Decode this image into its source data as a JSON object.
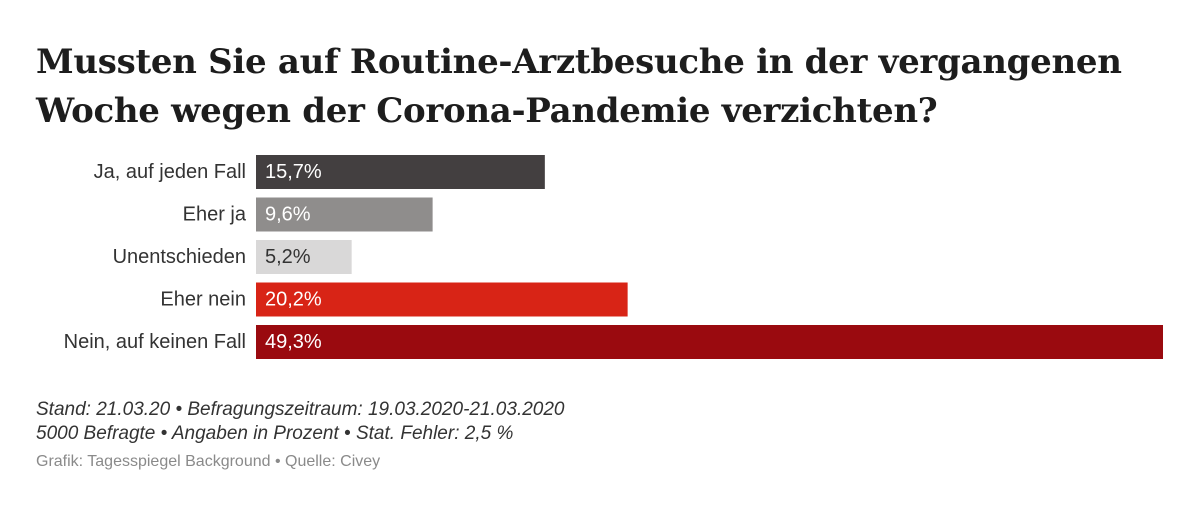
{
  "header": {
    "title_line1": "Mussten Sie auf Routine-Arztbesuche in der vergangenen",
    "title_line2": "Woche wegen der Corona-Pandemie verzichten?"
  },
  "chart_data": {
    "type": "bar",
    "orientation": "horizontal",
    "categories": [
      "Ja, auf jeden Fall",
      "Eher ja",
      "Unentschieden",
      "Eher nein",
      "Nein, auf keinen Fall"
    ],
    "values": [
      15.7,
      9.6,
      5.2,
      20.2,
      49.3
    ],
    "value_labels": [
      "15,7%",
      "9,6%",
      "5,2%",
      "20,2%",
      "49,3%"
    ],
    "colors": [
      "#433f40",
      "#8f8d8c",
      "#d9d8d8",
      "#d82416",
      "#9a0a0f"
    ],
    "label_colors": [
      "#ffffff",
      "#ffffff",
      "#333333",
      "#ffffff",
      "#ffffff"
    ],
    "xlim": [
      0,
      49.3
    ],
    "grid": false,
    "legend": "none"
  },
  "footer": {
    "note_line1": "Stand: 21.03.20 • Befragungszeitraum: 19.03.2020-21.03.2020",
    "note_line2": "5000 Befragte • Angaben in Prozent • Stat. Fehler: 2,5 %",
    "credit": "Grafik: Tagesspiegel Background • Quelle: Civey"
  }
}
